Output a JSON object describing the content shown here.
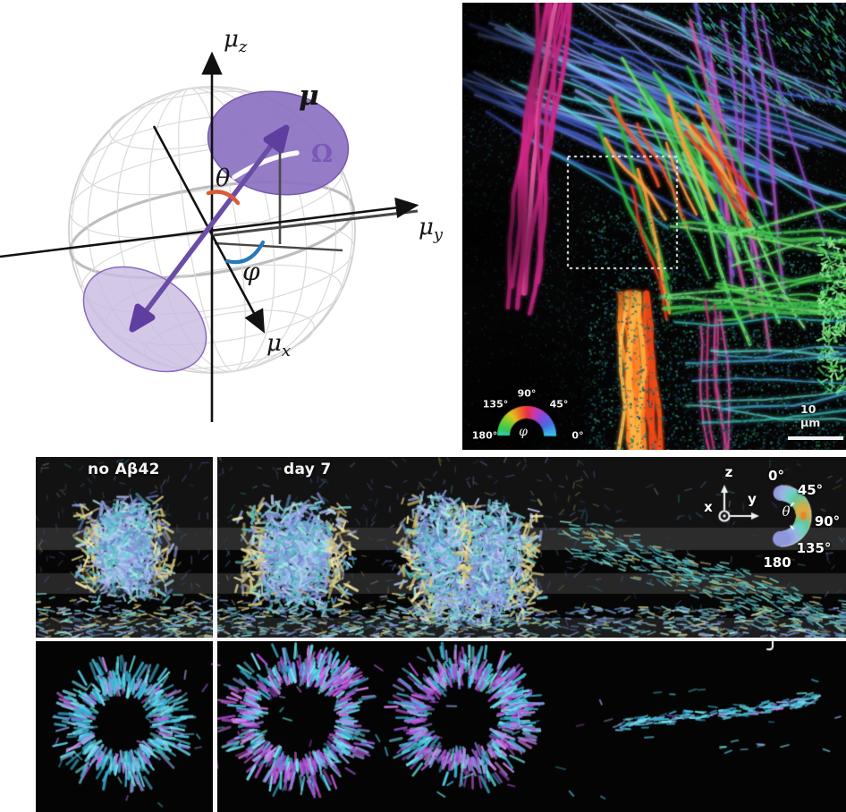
{
  "sphere_panel": {
    "axis_z": {
      "base": "μ",
      "sub": "z"
    },
    "axis_y": {
      "base": "μ",
      "sub": "y"
    },
    "axis_x": {
      "base": "μ",
      "sub": "x"
    },
    "dipole_label": "μ",
    "solid_angle_label": "Ω",
    "polar_angle_label": "θ",
    "azimuth_angle_label": "φ",
    "colors": {
      "polar_angle": "#d85c38",
      "azimuth_angle": "#2879b8",
      "dipole_vector": "#6a4da6",
      "solid_angle": "#7a58b8"
    }
  },
  "microscopy_panel": {
    "phi_colorwheel": {
      "symbol": "φ",
      "tick_90": "90°",
      "tick_135": "135°",
      "tick_45": "45°",
      "tick_180": "180°",
      "tick_0": "0°"
    },
    "scale_bar_label": "10 μm"
  },
  "timelapse_panel": {
    "label_control": "no Aβ42",
    "label_day7": "day 7",
    "axes": {
      "x": "x",
      "y": "y",
      "z": "z"
    },
    "theta_legend": {
      "symbol": "θ",
      "tick_0": "0°",
      "tick_45": "45°",
      "tick_90": "90°",
      "tick_135": "135°",
      "tick_180": "180"
    },
    "colors": {
      "cyan_segments": "#58cfec",
      "magenta_segments": "#c75fe0",
      "periwinkle_segments": "#8a92da",
      "khaki_segments": "#d8cc82"
    }
  }
}
